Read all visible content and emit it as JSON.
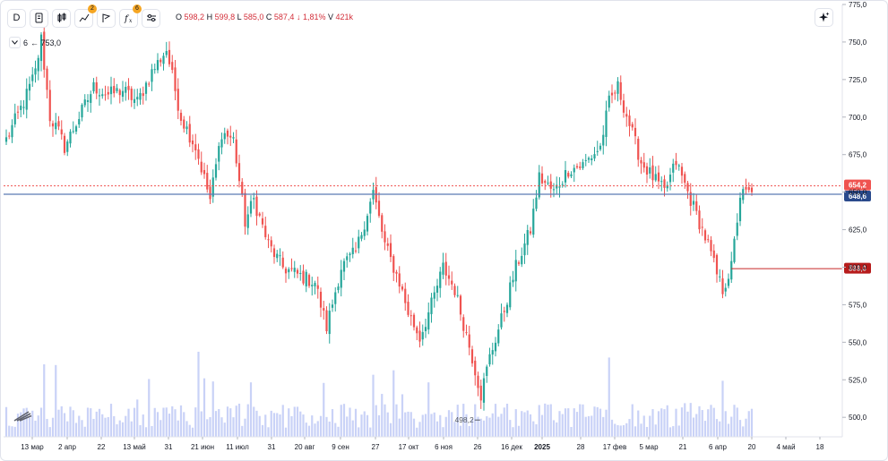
{
  "toolbar": {
    "interval_label": "D",
    "indicators_badge": "2",
    "functions_badge": "6"
  },
  "ohlc_legend": {
    "open_label": "O",
    "open": "598,2",
    "high_label": "H",
    "high": "599,8",
    "low_label": "L",
    "low": "585,0",
    "close_label": "C",
    "close": "587,4",
    "change": "↓ 1,81%",
    "volume_label": "V",
    "volume": "421k"
  },
  "indicator_legend": {
    "value": "6",
    "label": "← 753,0"
  },
  "colors": {
    "up": "#26a69a",
    "down": "#ef5350",
    "volume": "#c9d2f7",
    "line_blue": "#5b7ab5",
    "line_red": "#c62828"
  },
  "chart_data": {
    "type": "candlestick",
    "y_range": [
      487,
      775
    ],
    "y_ticks": [
      "775,0",
      "750,0",
      "725,0",
      "700,0",
      "675,0",
      "650,0",
      "625,0",
      "600,0",
      "575,0",
      "550,0",
      "525,0",
      "500,0"
    ],
    "x_ticks": [
      "13 мар",
      "2 апр",
      "22",
      "13 май",
      "31",
      "21 июн",
      "11 июл",
      "31",
      "20 авг",
      "9 сен",
      "27",
      "17 окт",
      "6 ноя",
      "26",
      "16 дек",
      "2025",
      "28",
      "17 фев",
      "5 мар",
      "21",
      "6 апр",
      "20",
      "4 май",
      "18"
    ],
    "anchors": [
      [
        0,
        685
      ],
      [
        6,
        710
      ],
      [
        10,
        730
      ],
      [
        12,
        752
      ],
      [
        15,
        700
      ],
      [
        18,
        690
      ],
      [
        20,
        680
      ],
      [
        25,
        700
      ],
      [
        30,
        720
      ],
      [
        35,
        715
      ],
      [
        40,
        718
      ],
      [
        45,
        710
      ],
      [
        50,
        730
      ],
      [
        55,
        745
      ],
      [
        60,
        700
      ],
      [
        65,
        680
      ],
      [
        70,
        645
      ],
      [
        74,
        690
      ],
      [
        78,
        685
      ],
      [
        82,
        630
      ],
      [
        85,
        645
      ],
      [
        90,
        615
      ],
      [
        95,
        600
      ],
      [
        100,
        595
      ],
      [
        106,
        590
      ],
      [
        110,
        560
      ],
      [
        115,
        600
      ],
      [
        120,
        610
      ],
      [
        126,
        650
      ],
      [
        130,
        615
      ],
      [
        135,
        590
      ],
      [
        138,
        570
      ],
      [
        142,
        553
      ],
      [
        146,
        575
      ],
      [
        150,
        600
      ],
      [
        154,
        585
      ],
      [
        158,
        555
      ],
      [
        160,
        540
      ],
      [
        163,
        515
      ],
      [
        166,
        540
      ],
      [
        170,
        565
      ],
      [
        175,
        600
      ],
      [
        180,
        625
      ],
      [
        183,
        660
      ],
      [
        188,
        650
      ],
      [
        193,
        665
      ],
      [
        198,
        668
      ],
      [
        204,
        680
      ],
      [
        207,
        710
      ],
      [
        210,
        720
      ],
      [
        214,
        695
      ],
      [
        218,
        670
      ],
      [
        222,
        660
      ],
      [
        226,
        650
      ],
      [
        230,
        670
      ],
      [
        234,
        650
      ],
      [
        238,
        630
      ],
      [
        241,
        615
      ],
      [
        244,
        595
      ],
      [
        246,
        585
      ],
      [
        249,
        600
      ],
      [
        252,
        648
      ],
      [
        256,
        650
      ]
    ],
    "last_index": 256,
    "annotations": {
      "high": "753,0",
      "low": "498,2"
    },
    "price_lines": [
      {
        "value": 654.2,
        "label": "654,2",
        "style": "dashed",
        "color": "#ef5350"
      },
      {
        "value": 648.6,
        "label": "648,6",
        "style": "solid",
        "color": "#2962ff"
      },
      {
        "value": 599.0,
        "label": "599,0",
        "style": "solid",
        "color": "#c62828"
      }
    ]
  }
}
